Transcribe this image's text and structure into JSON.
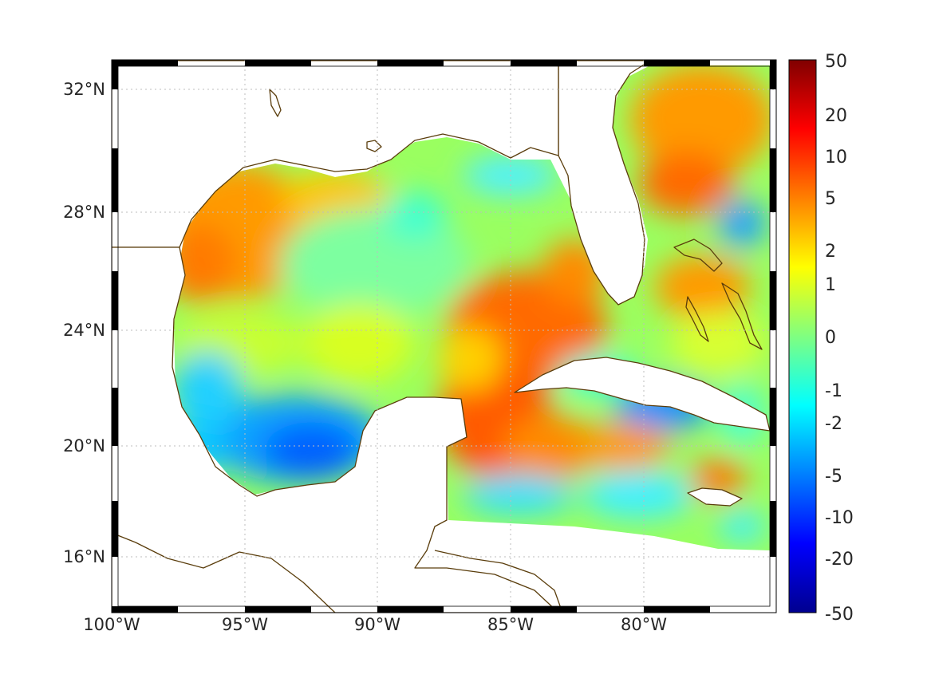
{
  "map": {
    "lon_range": [
      -100,
      -75
    ],
    "lat_range": [
      14.3,
      33
    ],
    "x_ticks": [
      {
        "lon": -100,
        "label": "100°W"
      },
      {
        "lon": -95,
        "label": "95°W"
      },
      {
        "lon": -90,
        "label": "90°W"
      },
      {
        "lon": -85,
        "label": "85°W"
      },
      {
        "lon": -80,
        "label": "80°W"
      }
    ],
    "y_ticks": [
      {
        "lat": 32,
        "label": "32°N"
      },
      {
        "lat": 28,
        "label": "28°N"
      },
      {
        "lat": 24,
        "label": "24°N"
      },
      {
        "lat": 20,
        "label": "20°N"
      },
      {
        "lat": 16,
        "label": "16°N"
      }
    ],
    "frame_style": "alternating black/white border",
    "grid": true,
    "coastline_color": "#5a3d0c"
  },
  "colorbar": {
    "colormap": "jet",
    "orientation": "vertical",
    "location": "right",
    "ticks": [
      "50",
      "20",
      "10",
      "5",
      "2",
      "1",
      "0",
      "-1",
      "-2",
      "-5",
      "-10",
      "-20",
      "-50"
    ]
  },
  "field": {
    "description_regions": [
      {
        "region": "western Gulf",
        "level": "orange"
      },
      {
        "region": "central Gulf",
        "level": "green-yellow"
      },
      {
        "region": "Bay of Campeche",
        "level": "blue"
      },
      {
        "region": "Yucatan channel / loop current",
        "level": "orange-red"
      },
      {
        "region": "Atlantic off Florida",
        "level": "orange"
      },
      {
        "region": "Caribbean",
        "level": "mixed cyan-orange"
      }
    ]
  }
}
